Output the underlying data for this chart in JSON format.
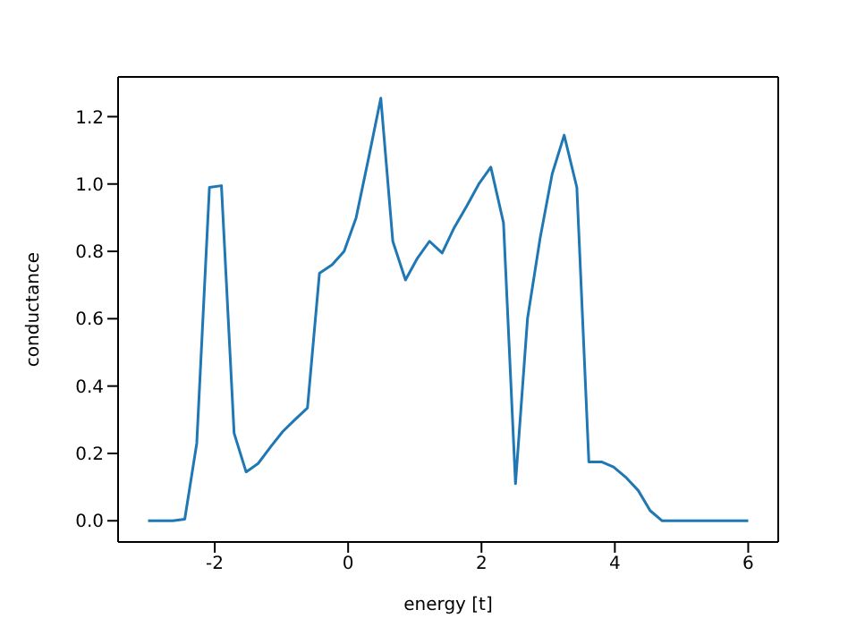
{
  "chart_data": {
    "type": "line",
    "xlabel": "energy [t]",
    "ylabel": "conductance",
    "x": [
      -3,
      -2.82,
      -2.63,
      -2.45,
      -2.27,
      -2.08,
      -1.9,
      -1.71,
      -1.53,
      -1.35,
      -1.16,
      -0.98,
      -0.8,
      -0.61,
      -0.43,
      -0.24,
      -0.06,
      0.12,
      0.31,
      0.49,
      0.67,
      0.86,
      1.04,
      1.22,
      1.41,
      1.59,
      1.78,
      1.96,
      2.14,
      2.33,
      2.51,
      2.69,
      2.88,
      3.06,
      3.24,
      3.43,
      3.61,
      3.8,
      3.98,
      4.16,
      4.35,
      4.53,
      4.71,
      4.9,
      5.08,
      5.27,
      5.45,
      5.63,
      5.82,
      6
    ],
    "series": [
      {
        "color": "#1f77b4",
        "values": [
          0,
          0,
          0,
          0.005,
          0.23,
          0.99,
          0.995,
          0.26,
          0.145,
          0.17,
          0.22,
          0.265,
          0.3,
          0.335,
          0.735,
          0.76,
          0.8,
          0.9,
          1.08,
          1.255,
          0.83,
          0.715,
          0.78,
          0.83,
          0.795,
          0.87,
          0.935,
          1.0,
          1.05,
          0.885,
          0.11,
          0.6,
          0.84,
          1.03,
          1.145,
          0.99,
          0.175,
          0.175,
          0.16,
          0.13,
          0.09,
          0.03,
          0,
          0,
          0,
          0,
          0,
          0,
          0,
          0
        ]
      }
    ],
    "xlim": [
      -3.45,
      6.45
    ],
    "ylim": [
      -0.063,
      1.318
    ],
    "xticks": [
      -2,
      0,
      2,
      4,
      6
    ],
    "yticks": [
      {
        "value": 0,
        "label": "0.0"
      },
      0.2,
      0.4,
      0.6,
      0.8,
      {
        "value": 1,
        "label": "1.0"
      },
      1.2
    ],
    "grid": false,
    "legend": false,
    "marker": "none",
    "line_style": "solid"
  }
}
